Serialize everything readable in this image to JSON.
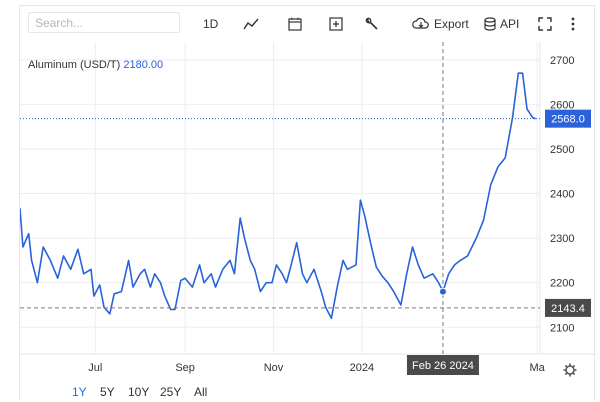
{
  "toolbar": {
    "search_placeholder": "Search...",
    "interval": "1D",
    "export_label": "Export",
    "api_label": "API"
  },
  "icons": [
    "line-chart-icon",
    "calendar-icon",
    "add-indicator-icon",
    "wrench-icon",
    "cloud-download-icon",
    "database-icon",
    "fullscreen-icon",
    "more-icon",
    "settings-icon"
  ],
  "colors": {
    "line": "#2962d9",
    "crosshair_badge": "#4a4a4a",
    "last_price_badge": "#2962d9",
    "dashed": "#7a7a7a"
  },
  "chart_data": {
    "type": "line",
    "series": [
      {
        "name": "Aluminum (USD/T)",
        "legend_value": "2180.00",
        "points": [
          [
            "2023-05-10",
            2367
          ],
          [
            "2023-05-12",
            2280
          ],
          [
            "2023-05-16",
            2310
          ],
          [
            "2023-05-18",
            2250
          ],
          [
            "2023-05-22",
            2200
          ],
          [
            "2023-05-26",
            2280
          ],
          [
            "2023-05-31",
            2250
          ],
          [
            "2023-06-05",
            2210
          ],
          [
            "2023-06-09",
            2260
          ],
          [
            "2023-06-14",
            2230
          ],
          [
            "2023-06-19",
            2275
          ],
          [
            "2023-06-23",
            2220
          ],
          [
            "2023-06-28",
            2230
          ],
          [
            "2023-06-30",
            2170
          ],
          [
            "2023-07-04",
            2195
          ],
          [
            "2023-07-07",
            2145
          ],
          [
            "2023-07-11",
            2130
          ],
          [
            "2023-07-14",
            2175
          ],
          [
            "2023-07-19",
            2180
          ],
          [
            "2023-07-24",
            2250
          ],
          [
            "2023-07-27",
            2190
          ],
          [
            "2023-08-01",
            2220
          ],
          [
            "2023-08-04",
            2230
          ],
          [
            "2023-08-08",
            2190
          ],
          [
            "2023-08-11",
            2220
          ],
          [
            "2023-08-15",
            2200
          ],
          [
            "2023-08-18",
            2170
          ],
          [
            "2023-08-22",
            2140
          ],
          [
            "2023-08-25",
            2140
          ],
          [
            "2023-08-29",
            2205
          ],
          [
            "2023-09-01",
            2210
          ],
          [
            "2023-09-06",
            2190
          ],
          [
            "2023-09-11",
            2240
          ],
          [
            "2023-09-14",
            2200
          ],
          [
            "2023-09-19",
            2220
          ],
          [
            "2023-09-22",
            2190
          ],
          [
            "2023-09-27",
            2230
          ],
          [
            "2023-10-02",
            2250
          ],
          [
            "2023-10-05",
            2220
          ],
          [
            "2023-10-09",
            2345
          ],
          [
            "2023-10-12",
            2300
          ],
          [
            "2023-10-16",
            2250
          ],
          [
            "2023-10-19",
            2230
          ],
          [
            "2023-10-23",
            2180
          ],
          [
            "2023-10-27",
            2200
          ],
          [
            "2023-10-31",
            2200
          ],
          [
            "2023-11-03",
            2240
          ],
          [
            "2023-11-07",
            2220
          ],
          [
            "2023-11-10",
            2200
          ],
          [
            "2023-11-14",
            2250
          ],
          [
            "2023-11-17",
            2290
          ],
          [
            "2023-11-21",
            2220
          ],
          [
            "2023-11-24",
            2200
          ],
          [
            "2023-11-29",
            2230
          ],
          [
            "2023-12-04",
            2180
          ],
          [
            "2023-12-07",
            2145
          ],
          [
            "2023-12-11",
            2120
          ],
          [
            "2023-12-15",
            2190
          ],
          [
            "2023-12-19",
            2250
          ],
          [
            "2023-12-22",
            2230
          ],
          [
            "2023-12-28",
            2240
          ],
          [
            "2023-12-31",
            2385
          ],
          [
            "2024-01-03",
            2350
          ],
          [
            "2024-01-07",
            2290
          ],
          [
            "2024-01-11",
            2235
          ],
          [
            "2024-01-15",
            2215
          ],
          [
            "2024-01-19",
            2200
          ],
          [
            "2024-01-23",
            2180
          ],
          [
            "2024-01-28",
            2150
          ],
          [
            "2024-02-01",
            2220
          ],
          [
            "2024-02-05",
            2280
          ],
          [
            "2024-02-09",
            2240
          ],
          [
            "2024-02-13",
            2210
          ],
          [
            "2024-02-19",
            2220
          ],
          [
            "2024-02-23",
            2200
          ],
          [
            "2024-02-26",
            2180
          ],
          [
            "2024-03-01",
            2220
          ],
          [
            "2024-03-05",
            2240
          ],
          [
            "2024-03-09",
            2250
          ],
          [
            "2024-03-14",
            2260
          ],
          [
            "2024-03-20",
            2300
          ],
          [
            "2024-03-25",
            2340
          ],
          [
            "2024-03-30",
            2420
          ],
          [
            "2024-04-04",
            2460
          ],
          [
            "2024-04-09",
            2480
          ],
          [
            "2024-04-14",
            2570
          ],
          [
            "2024-04-18",
            2670
          ],
          [
            "2024-04-21",
            2670
          ],
          [
            "2024-04-24",
            2590
          ],
          [
            "2024-04-28",
            2570
          ],
          [
            "2024-04-30",
            2568
          ]
        ]
      }
    ],
    "y_ticks": [
      "2100",
      "2200",
      "2300",
      "2400",
      "2500",
      "2600",
      "2700"
    ],
    "x_ticks": [
      [
        "2023-07-01",
        "Jul"
      ],
      [
        "2023-09-01",
        "Sep"
      ],
      [
        "2023-11-01",
        "Nov"
      ],
      [
        "2024-01-01",
        "2024"
      ],
      [
        "2024-05-01",
        "Ma"
      ]
    ],
    "ylim": [
      2040,
      2740
    ],
    "xlim": [
      "2023-05-10",
      "2024-05-03"
    ],
    "grid": true,
    "last_price": "2568.0",
    "crosshair": {
      "date": "2024-02-26",
      "date_label": "Feb 26 2024",
      "price_label": "2143.4"
    },
    "range_buttons": [
      "1Y",
      "5Y",
      "10Y",
      "25Y",
      "All"
    ],
    "active_range": "1Y"
  }
}
